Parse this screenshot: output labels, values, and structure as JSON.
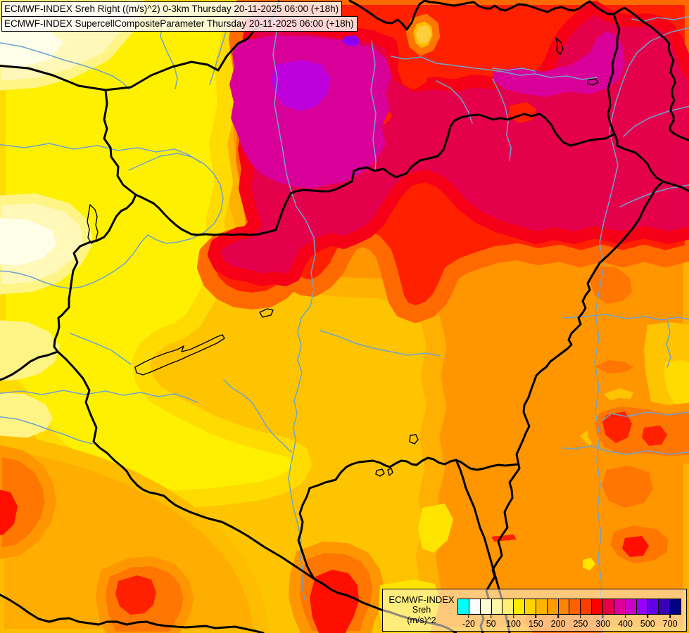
{
  "title": {
    "line1": "ECMWF-INDEX Sreh Right ((m/s)^2) 0-3km Thursday 20-11-2025 06:00 (+18h)",
    "line2": "ECMWF-INDEX SupercellCompositeParameter Thursday 20-11-2025 06:00 (+18h)"
  },
  "legend": {
    "product": "ECMWF-INDEX",
    "parameter": "Sreh",
    "unit": "(m/s)^2",
    "ticks": [
      "-20",
      "50",
      "100",
      "150",
      "200",
      "250",
      "300",
      "400",
      "500",
      "700"
    ],
    "swatches": [
      "#00FFFF",
      "#FFFFFF",
      "#FFFBD2",
      "#FFF6A6",
      "#FFF075",
      "#FFEB00",
      "#FFD400",
      "#FFB400",
      "#FF9C00",
      "#FF8400",
      "#FF6000",
      "#FF3C00",
      "#FC0000",
      "#E60046",
      "#DC0096",
      "#C800C8",
      "#9600FF",
      "#6400E6",
      "#3700B8",
      "#000082"
    ]
  },
  "palette": {
    "base": "#FFC400",
    "yellow": "#FFF000",
    "gold": "#FFDB00",
    "pale1": "#FFF8B8",
    "pale2": "#FFF485",
    "cream": "#FFFEE8",
    "ltOrange": "#FFAD00",
    "ltOrangeStroke": "#FFBD00",
    "orange": "#FF9600",
    "orangeStroke": "#FFB000",
    "dkOrange": "#FF7600",
    "dkOrangeStroke": "#FF9600",
    "red": "#FF2000",
    "redStroke": "#FF6A00",
    "brightRed": "#FF0F00",
    "crimson": "#E4004B",
    "crimsonStroke": "#F50016",
    "magenta": "#D80098",
    "purple": "#BE00DC",
    "violet": "#8C00F5",
    "amberSpot": "#FFBC00",
    "goldCore": "#FFCE3C",
    "yellowSpot": "#FFE400",
    "river": "#6FA3CC",
    "border": "#000000"
  }
}
